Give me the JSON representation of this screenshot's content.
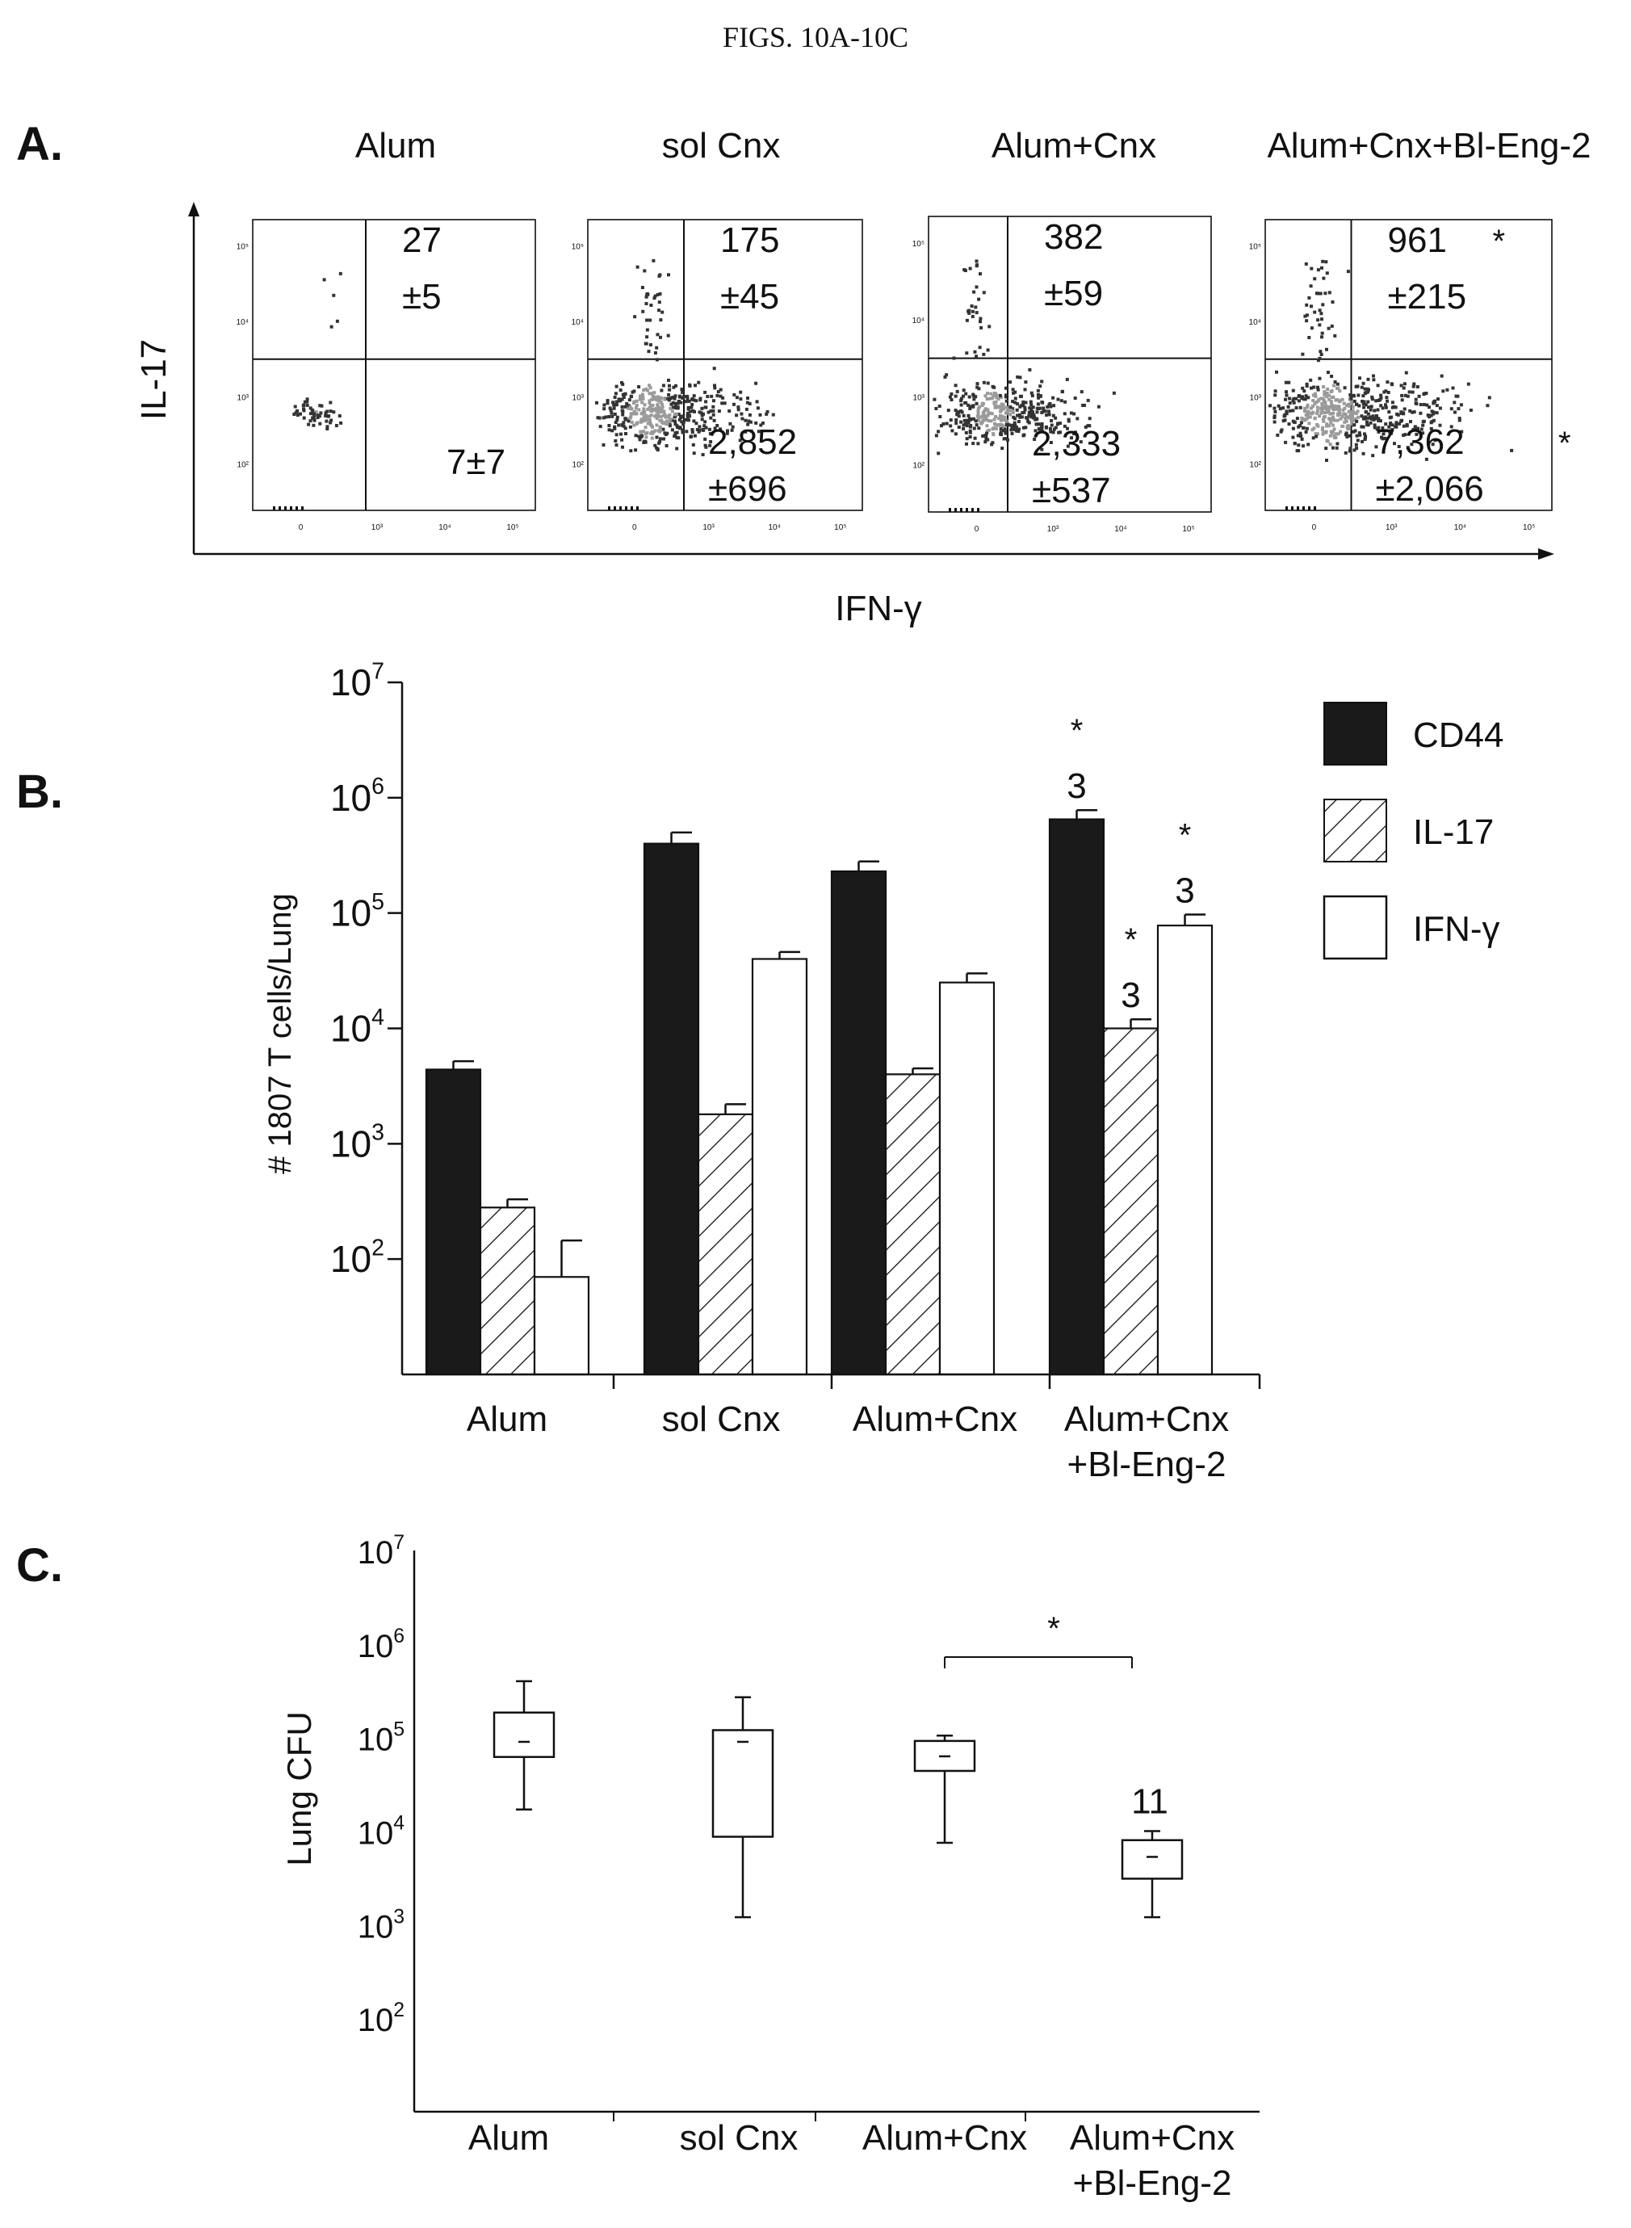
{
  "figure_title": "FIGS. 10A-10C",
  "panel_labels": [
    "A.",
    "B.",
    "C."
  ],
  "panel_a": {
    "xlabel": "IFN-γ",
    "ylabel": "IL-17",
    "tick_labels": {
      "x": [
        "0",
        "10³",
        "10⁴",
        "10⁵"
      ],
      "y": [
        "10²",
        "10³",
        "10⁴",
        "10⁵"
      ]
    },
    "plots": [
      {
        "title": "Alum",
        "upper_value": "27",
        "upper_sd": "±5",
        "upper_star": "",
        "lower_value": "7±7",
        "lower_sd": "",
        "lower_star": "",
        "density": 0.05
      },
      {
        "title": "sol Cnx",
        "upper_value": "175",
        "upper_sd": "±45",
        "upper_star": "",
        "lower_value": "2,852",
        "lower_sd": "±696",
        "lower_star": "",
        "density": 0.85
      },
      {
        "title": "Alum+Cnx",
        "upper_value": "382",
        "upper_sd": "±59",
        "upper_star": "",
        "lower_value": "2,333",
        "lower_sd": "±537",
        "lower_star": "",
        "density": 0.7
      },
      {
        "title": "Alum+Cnx+Bl-Eng-2",
        "upper_value": "961",
        "upper_sd": "±215",
        "upper_star": "*",
        "lower_value": "7,362",
        "lower_sd": "±2,066",
        "lower_star": "*",
        "density": 1.0
      }
    ]
  },
  "panel_b": {
    "ylabel": "# 1807 T cells/Lung",
    "legend": [
      {
        "label": "CD44",
        "fill": "solid"
      },
      {
        "label": "IL-17",
        "fill": "hatched"
      },
      {
        "label": "IFN-γ",
        "fill": "open"
      }
    ],
    "category_lines": [
      [
        "Alum"
      ],
      [
        "sol Cnx"
      ],
      [
        "Alum+Cnx"
      ],
      [
        "Alum+Cnx",
        "+Bl-Eng-2"
      ]
    ],
    "annotation_star": "*",
    "annotation_n": "3"
  },
  "panel_c": {
    "ylabel": "Lung CFU",
    "category_lines": [
      [
        "Alum"
      ],
      [
        "sol Cnx"
      ],
      [
        "Alum+Cnx"
      ],
      [
        "Alum+Cnx",
        "+Bl-Eng-2"
      ]
    ],
    "sig_star": "*",
    "n_label": "11"
  },
  "colors": {
    "ink": "#111111",
    "scatter_light": "#9a9a9a",
    "scatter_dark": "#333333"
  },
  "chart_data": [
    {
      "type": "scatter",
      "title": "",
      "xlabel": "IFN-γ",
      "ylabel": "IL-17",
      "series": [
        {
          "name": "Alum",
          "upper_quadrant_mean": 27,
          "upper_quadrant_sd": 5,
          "lower_quadrant_mean": 7,
          "lower_quadrant_sd": 7
        },
        {
          "name": "sol Cnx",
          "upper_quadrant_mean": 175,
          "upper_quadrant_sd": 45,
          "lower_quadrant_mean": 2852,
          "lower_quadrant_sd": 696
        },
        {
          "name": "Alum+Cnx",
          "upper_quadrant_mean": 382,
          "upper_quadrant_sd": 59,
          "lower_quadrant_mean": 2333,
          "lower_quadrant_sd": 537
        },
        {
          "name": "Alum+Cnx+Bl-Eng-2",
          "upper_quadrant_mean": 961,
          "upper_quadrant_sd": 215,
          "lower_quadrant_mean": 7362,
          "lower_quadrant_sd": 2066
        }
      ]
    },
    {
      "type": "bar",
      "title": "",
      "xlabel": "",
      "ylabel": "# 1807 T cells/Lung",
      "yscale": "log",
      "ylim": [
        10,
        10000000
      ],
      "y_ticks": [
        100,
        1000,
        10000,
        100000,
        1000000,
        10000000
      ],
      "categories": [
        "Alum",
        "sol Cnx",
        "Alum+Cnx",
        "Alum+Cnx +Bl-Eng-2"
      ],
      "series": [
        {
          "name": "CD44",
          "values": [
            4400,
            400000,
            230000,
            650000
          ],
          "error_upper": [
            5200,
            500000,
            280000,
            780000
          ],
          "annotations": [
            "",
            "",
            "",
            "* 3"
          ]
        },
        {
          "name": "IL-17",
          "values": [
            280,
            1800,
            4000,
            10000
          ],
          "error_upper": [
            330,
            2200,
            4500,
            12000
          ],
          "annotations": [
            "",
            "",
            "",
            "* 3"
          ]
        },
        {
          "name": "IFN-γ",
          "values": [
            70,
            40000,
            25000,
            78000
          ],
          "error_upper": [
            145,
            46000,
            30000,
            97000
          ],
          "annotations": [
            "",
            "",
            "",
            "* 3"
          ]
        }
      ]
    },
    {
      "type": "box",
      "title": "",
      "xlabel": "",
      "ylabel": "Lung CFU",
      "yscale": "log",
      "ylim": [
        10,
        10000000
      ],
      "y_ticks": [
        100,
        1000,
        10000,
        100000,
        1000000,
        10000000
      ],
      "categories": [
        "Alum",
        "sol Cnx",
        "Alum+Cnx",
        "Alum+Cnx +Bl-Eng-2"
      ],
      "boxes": [
        {
          "whisker_low": 17000,
          "q1": 62000,
          "median": 90000,
          "q3": 185000,
          "whisker_high": 400000
        },
        {
          "whisker_low": 1200,
          "q1": 8700,
          "median": 90000,
          "q3": 120000,
          "whisker_high": 270000
        },
        {
          "whisker_low": 7500,
          "q1": 44000,
          "median": 63000,
          "q3": 92000,
          "whisker_high": 105000
        },
        {
          "whisker_low": 1200,
          "q1": 3100,
          "median": 5300,
          "q3": 8000,
          "whisker_high": 10000
        }
      ],
      "significance": [
        {
          "between": [
            "Alum+Cnx",
            "Alum+Cnx +Bl-Eng-2"
          ],
          "label": "*"
        }
      ],
      "annotations": [
        {
          "category": "Alum+Cnx +Bl-Eng-2",
          "label": "11"
        }
      ]
    }
  ]
}
